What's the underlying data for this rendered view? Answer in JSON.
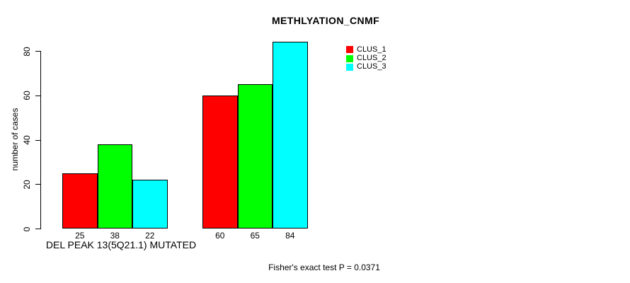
{
  "chart_data": {
    "type": "bar",
    "title": "METHLYATION_CNMF",
    "ylabel": "number of cases",
    "xlabel": "DEL PEAK 13(5Q21.1) MUTATED",
    "footnote": "Fisher's exact test P = 0.0371",
    "ylim": [
      0,
      84
    ],
    "yticks": [
      0,
      20,
      40,
      60,
      80
    ],
    "categories": [
      "DEL PEAK 13(5Q21.1) MUTATED",
      ""
    ],
    "series": [
      {
        "name": "CLUS_1",
        "color": "#ff0000",
        "values": [
          25,
          60
        ]
      },
      {
        "name": "CLUS_2",
        "color": "#00ff00",
        "values": [
          38,
          65
        ]
      },
      {
        "name": "CLUS_3",
        "color": "#00ffff",
        "values": [
          22,
          84
        ]
      }
    ],
    "legend_position": "right",
    "grid": false,
    "bar_border_color": "#000000",
    "text_color": "#000000",
    "background_color": "#ffffff"
  }
}
